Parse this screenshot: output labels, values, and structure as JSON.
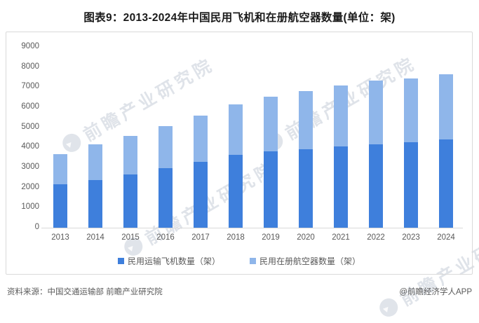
{
  "title": "图表9：2013-2024年中国民用飞机和在册航空器数量(单位：架)",
  "chart_data": {
    "type": "bar",
    "stacked": true,
    "title": "图表9：2013-2024年中国民用飞机和在册航空器数量(单位：架)",
    "categories": [
      "2013",
      "2014",
      "2015",
      "2016",
      "2017",
      "2018",
      "2019",
      "2020",
      "2021",
      "2022",
      "2023",
      "2024"
    ],
    "series": [
      {
        "name": "民用运输飞机数量（架）",
        "color": "#3e7fdc",
        "values": [
          2145,
          2370,
          2650,
          2950,
          3296,
          3639,
          3818,
          3903,
          4054,
          4165,
          4270,
          4394
        ]
      },
      {
        "name": "民用在册航空器数量（架）",
        "color": "#8fb6ea",
        "values": [
          1519,
          1785,
          1904,
          2096,
          2292,
          2495,
          2707,
          2892,
          3018,
          3177,
          3173,
          3250
        ]
      }
    ],
    "totals": [
      3664,
      4155,
      4554,
      5046,
      5588,
      6134,
      6525,
      6795,
      7072,
      7342,
      7443,
      7644
    ],
    "xlabel": "",
    "ylabel": "",
    "ylim": [
      0,
      9000
    ],
    "yticks": [
      0,
      1000,
      2000,
      3000,
      4000,
      5000,
      6000,
      7000,
      8000,
      9000
    ],
    "grid": false,
    "legend_position": "bottom"
  },
  "watermark": {
    "text": "前瞻产业研究院",
    "logo": "qianzhan-bird-logo"
  },
  "footer": {
    "source": "资料来源：中国交通运输部 前瞻产业研究院",
    "credit": "@前瞻经济学人APP"
  },
  "colors": {
    "series1": "#3e7fdc",
    "series2": "#8fb6ea",
    "axis_text": "#595959",
    "axis_line": "#d9d9d9",
    "panel_border": "#d9d9d9",
    "title_text": "#1a1a1a",
    "watermark": "#b2bcca"
  }
}
